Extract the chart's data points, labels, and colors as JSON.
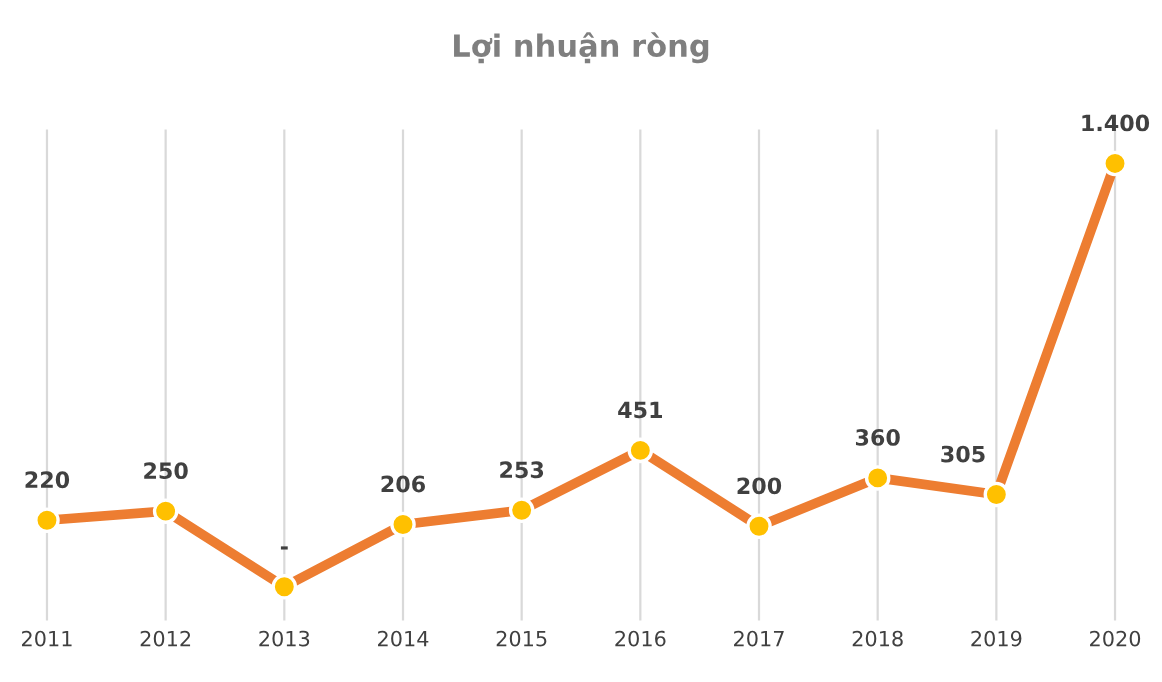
{
  "chart_data": {
    "type": "line",
    "title": "Lợi nhuận ròng",
    "categories": [
      "2011",
      "2012",
      "2013",
      "2014",
      "2015",
      "2016",
      "2017",
      "2018",
      "2019",
      "2020"
    ],
    "series": [
      {
        "color": "#ed7d31",
        "values": [
          220,
          250,
          0,
          206,
          253,
          451,
          200,
          360,
          305,
          1400
        ],
        "value_labels": [
          "220",
          "250",
          "-",
          "206",
          "253",
          "451",
          "200",
          "360",
          "305",
          "1.400"
        ]
      }
    ],
    "marker": "circle",
    "line_style": "solid",
    "grid": "x",
    "legend": false,
    "tick_labels": "x"
  }
}
